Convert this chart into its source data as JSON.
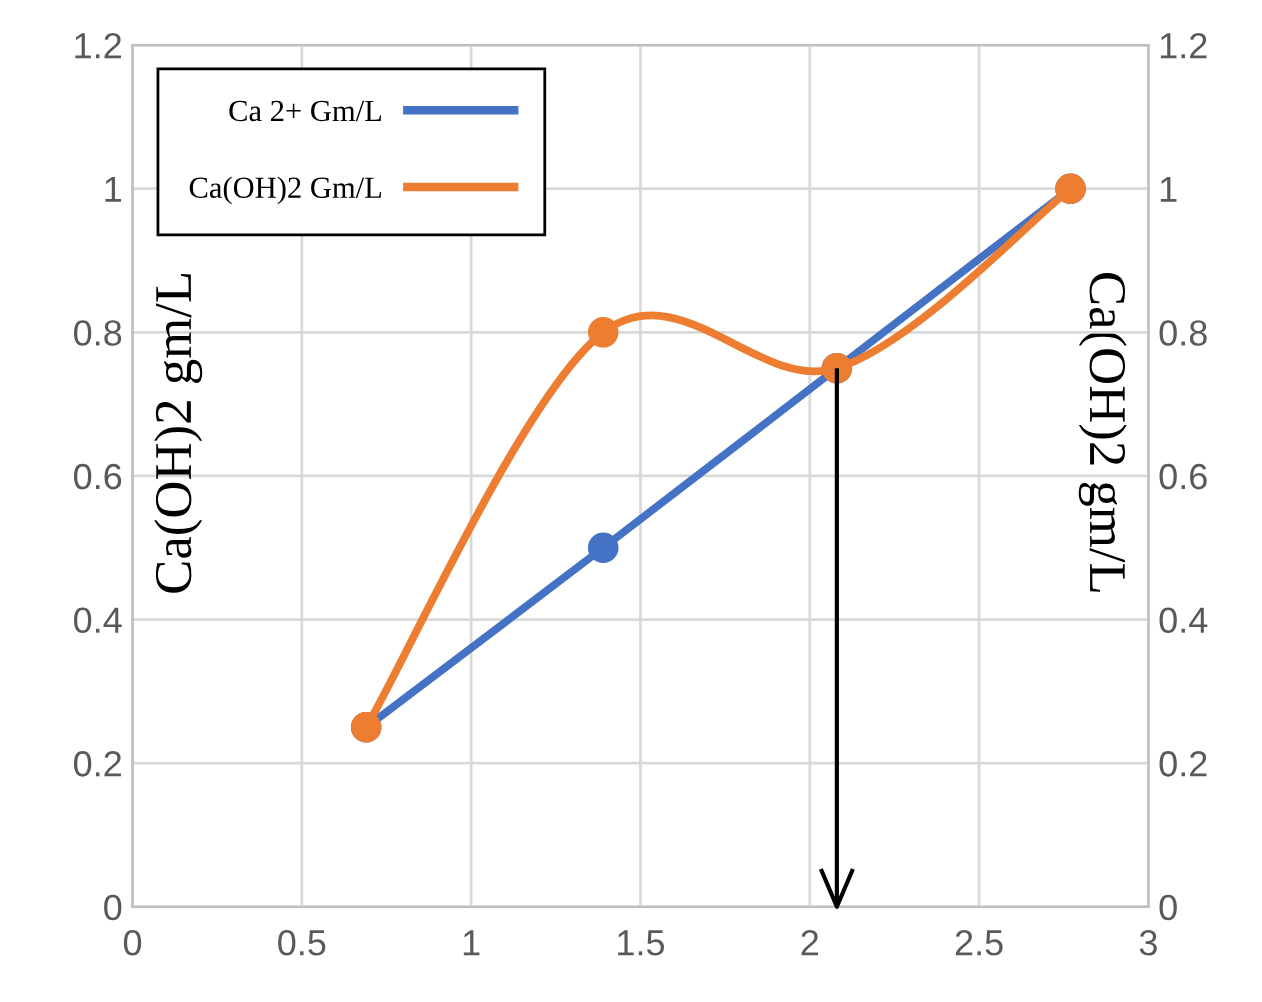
{
  "chart_data": {
    "type": "line",
    "ylabel": "Ca(OH)2 gm/L",
    "y2label": "Ca(OH)2 gm/L",
    "series": [
      {
        "name": "Ca 2+ Gm/L",
        "color": "#4472c4",
        "x": [
          0.69,
          1.39,
          2.08,
          2.77
        ],
        "values": [
          0.25,
          0.5,
          0.75,
          1.0
        ]
      },
      {
        "name": "Ca(OH)2 Gm/L",
        "color": "#ed7d31",
        "x": [
          0.69,
          1.39,
          2.08,
          2.77
        ],
        "values": [
          0.25,
          0.8,
          0.75,
          1.0
        ]
      }
    ],
    "xlim": [
      0,
      3
    ],
    "xticks": [
      0,
      0.5,
      1,
      1.5,
      2,
      2.5,
      3
    ],
    "ylim": [
      0,
      1.2
    ],
    "yticks": [
      0,
      0.2,
      0.4,
      0.6,
      0.8,
      1,
      1.2
    ],
    "y2lim": [
      0,
      1.2
    ],
    "y2ticks": [
      0,
      0.2,
      0.4,
      0.6,
      0.8,
      1,
      1.2
    ],
    "ref_lines": [
      {
        "axis": "x",
        "value": 2.08,
        "color": "#000000"
      }
    ],
    "grid": true,
    "legend": "top left",
    "marker": "circle",
    "line_style": "solid"
  }
}
